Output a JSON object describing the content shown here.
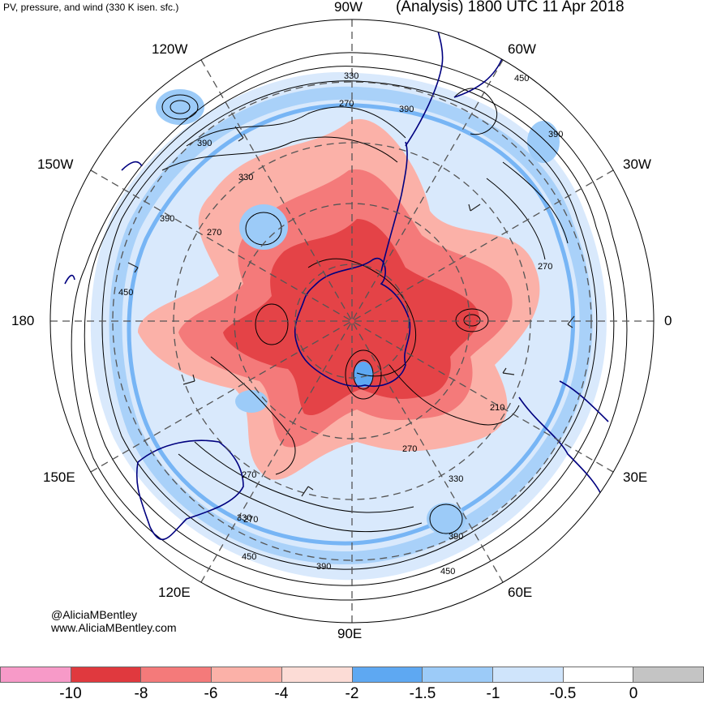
{
  "header": {
    "subtitle": "PV, pressure, and wind (330 K isen. sfc.)",
    "title": "(Analysis) 1800 UTC 11 Apr 2018"
  },
  "credits": {
    "twitter": "@AliciaMBentley",
    "website": "www.AliciaMBentley.com"
  },
  "longitude_labels": {
    "w90": "90W",
    "w60": "60W",
    "w30": "30W",
    "e0": "0",
    "e30": "30E",
    "e60": "60E",
    "e90": "90E",
    "e120": "120E",
    "e150": "150E",
    "d180": "180",
    "w150": "150W",
    "w120": "120W"
  },
  "contour_labels": [
    "330",
    "270",
    "390",
    "450",
    "390",
    "390",
    "330",
    "270",
    "390",
    "270",
    "450",
    "270",
    "210",
    "270",
    "330",
    "270",
    "330",
    "450",
    "390",
    "450",
    "390"
  ],
  "colorbar": {
    "colors": [
      "#f79ac8",
      "#e0393e",
      "#f47a7a",
      "#fbb1a8",
      "#fcdcd6",
      "#5ea8f2",
      "#9ccbf8",
      "#cfe4fb",
      "#ffffff",
      "#c4c4c4"
    ],
    "ticks": [
      "-10",
      "-8",
      "-6",
      "-4",
      "-2",
      "-1.5",
      "-1",
      "-0.5",
      "0"
    ]
  }
}
